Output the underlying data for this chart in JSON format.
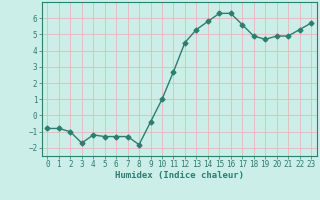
{
  "x": [
    0,
    1,
    2,
    3,
    4,
    5,
    6,
    7,
    8,
    9,
    10,
    11,
    12,
    13,
    14,
    15,
    16,
    17,
    18,
    19,
    20,
    21,
    22,
    23
  ],
  "y": [
    -0.8,
    -0.8,
    -1.0,
    -1.7,
    -1.2,
    -1.3,
    -1.3,
    -1.3,
    -1.8,
    -0.4,
    1.0,
    2.7,
    4.5,
    5.3,
    5.8,
    6.3,
    6.3,
    5.6,
    4.9,
    4.7,
    4.9,
    4.9,
    5.3,
    5.7
  ],
  "line_color": "#2e7d6e",
  "marker": "D",
  "markersize": 2.5,
  "linewidth": 1.0,
  "bg_color": "#cceee8",
  "grid_color": "#e8b8b8",
  "xlabel": "Humidex (Indice chaleur)",
  "xlabel_fontsize": 6.5,
  "tick_fontsize": 5.5,
  "xlim": [
    -0.5,
    23.5
  ],
  "ylim": [
    -2.5,
    7.0
  ],
  "yticks": [
    -2,
    -1,
    0,
    1,
    2,
    3,
    4,
    5,
    6
  ],
  "xticks": [
    0,
    1,
    2,
    3,
    4,
    5,
    6,
    7,
    8,
    9,
    10,
    11,
    12,
    13,
    14,
    15,
    16,
    17,
    18,
    19,
    20,
    21,
    22,
    23
  ]
}
